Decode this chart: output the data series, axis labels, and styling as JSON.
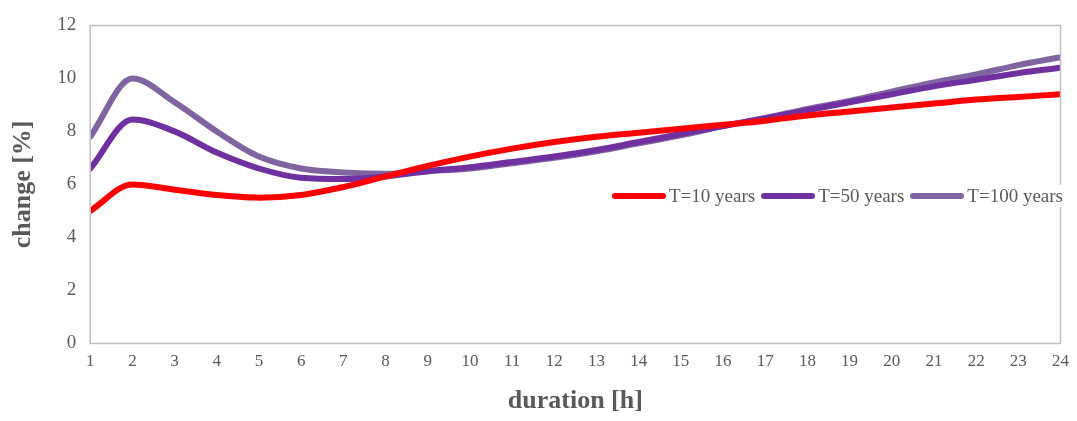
{
  "chart_data": {
    "type": "line",
    "xlabel": "duration [h]",
    "ylabel": "change [%]",
    "x": [
      1,
      2,
      3,
      4,
      5,
      6,
      7,
      8,
      9,
      10,
      11,
      12,
      13,
      14,
      15,
      16,
      17,
      18,
      19,
      20,
      21,
      22,
      23,
      24
    ],
    "xlim": [
      1,
      24
    ],
    "xticks": [
      1,
      2,
      3,
      4,
      5,
      6,
      7,
      8,
      9,
      10,
      11,
      12,
      13,
      14,
      15,
      16,
      17,
      18,
      19,
      20,
      21,
      22,
      23,
      24
    ],
    "series": [
      {
        "name": "T=10 years",
        "color": "#ff0000",
        "values": [
          5.0,
          6.0,
          5.8,
          5.6,
          5.5,
          5.6,
          5.9,
          6.3,
          6.7,
          7.05,
          7.35,
          7.6,
          7.8,
          7.95,
          8.1,
          8.25,
          8.4,
          8.6,
          8.75,
          8.9,
          9.05,
          9.2,
          9.3,
          9.4
        ]
      },
      {
        "name": "T=50 years",
        "color": "#7030a0",
        "values": [
          6.6,
          8.45,
          8.0,
          7.2,
          6.6,
          6.25,
          6.2,
          6.3,
          6.5,
          6.65,
          6.85,
          7.05,
          7.3,
          7.6,
          7.9,
          8.2,
          8.5,
          8.8,
          9.1,
          9.4,
          9.7,
          9.95,
          10.2,
          10.4
        ]
      },
      {
        "name": "T=100 years",
        "color": "#8064a2",
        "values": [
          7.8,
          10.0,
          9.1,
          8.0,
          7.05,
          6.6,
          6.45,
          6.4,
          6.5,
          6.6,
          6.8,
          7.0,
          7.25,
          7.55,
          7.85,
          8.2,
          8.5,
          8.85,
          9.15,
          9.5,
          9.85,
          10.15,
          10.5,
          10.8
        ]
      }
    ],
    "ylim": [
      0,
      12
    ],
    "yticks": [
      0,
      2,
      4,
      6,
      8,
      10,
      12
    ],
    "grid": false,
    "legend": "right",
    "marker": "none",
    "line_style": "solid"
  }
}
